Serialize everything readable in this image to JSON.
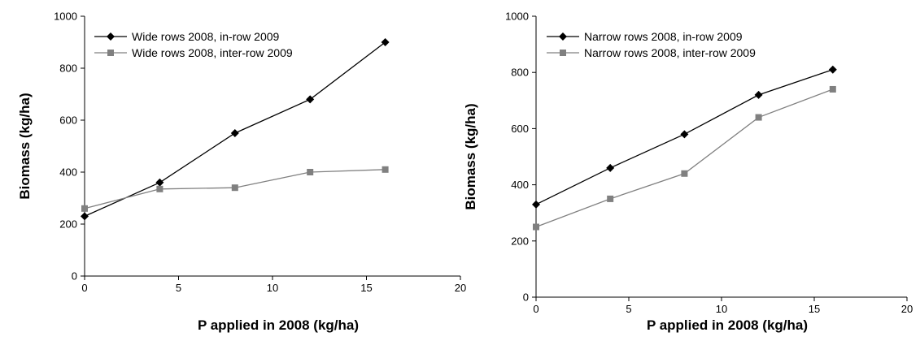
{
  "chart_data": [
    {
      "type": "line",
      "title": "",
      "xlabel": "P applied in 2008 (kg/ha)",
      "ylabel": "Biomass (kg/ha)",
      "xlim": [
        0,
        20
      ],
      "ylim": [
        0,
        1000
      ],
      "xticks": [
        0,
        5,
        10,
        15,
        20
      ],
      "yticks": [
        0,
        200,
        400,
        600,
        800,
        1000
      ],
      "grid": false,
      "legend_position": "top-left",
      "series": [
        {
          "name": "Wide rows 2008, in-row 2009",
          "marker": "diamond",
          "color": "#000000",
          "x": [
            0,
            4,
            8,
            12,
            16
          ],
          "y": [
            230,
            360,
            550,
            680,
            900
          ]
        },
        {
          "name": "Wide rows 2008, inter-row 2009",
          "marker": "square",
          "color": "#808080",
          "x": [
            0,
            4,
            8,
            12,
            16
          ],
          "y": [
            260,
            335,
            340,
            400,
            410
          ]
        }
      ]
    },
    {
      "type": "line",
      "title": "",
      "xlabel": "P applied in 2008 (kg/ha)",
      "ylabel": "Biomass (kg/ha)",
      "xlim": [
        0,
        20
      ],
      "ylim": [
        0,
        1000
      ],
      "xticks": [
        0,
        5,
        10,
        15,
        20
      ],
      "yticks": [
        0,
        200,
        400,
        600,
        800,
        1000
      ],
      "grid": false,
      "legend_position": "top-left",
      "series": [
        {
          "name": "Narrow rows 2008, in-row 2009",
          "marker": "diamond",
          "color": "#000000",
          "x": [
            0,
            4,
            8,
            12,
            16
          ],
          "y": [
            330,
            460,
            580,
            720,
            810
          ]
        },
        {
          "name": "Narrow rows 2008, inter-row 2009",
          "marker": "square",
          "color": "#808080",
          "x": [
            0,
            4,
            8,
            12,
            16
          ],
          "y": [
            250,
            350,
            440,
            640,
            740
          ]
        }
      ]
    }
  ]
}
